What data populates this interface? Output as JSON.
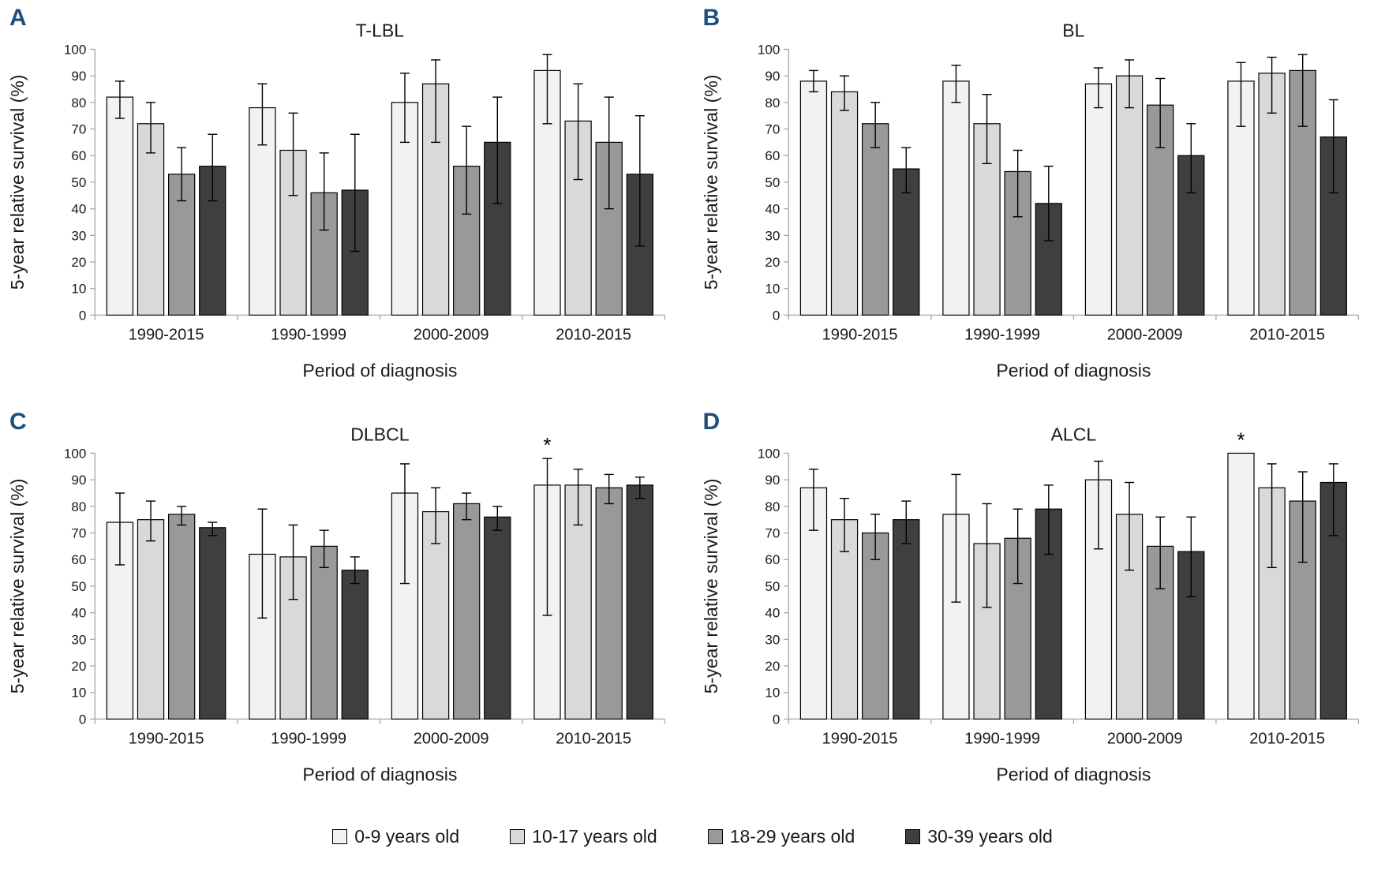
{
  "figure": {
    "accent_color": "#1d4f7e",
    "bar_border_color": "#000000",
    "axis_color": "#a6a6a6",
    "legend": {
      "items": [
        {
          "label": "0-9 years old",
          "color": "#f2f2f2"
        },
        {
          "label": "10-17 years old",
          "color": "#d9d9d9"
        },
        {
          "label": "18-29  years old",
          "color": "#999999"
        },
        {
          "label": "30-39 years old",
          "color": "#3f3f3f"
        }
      ]
    }
  },
  "chart_data": [
    {
      "panel": "A",
      "title": "T-LBL",
      "type": "bar",
      "xlabel": "Period of diagnosis",
      "ylabel": "5-year relative survival (%)",
      "ylim": [
        0,
        100
      ],
      "ytick_step": 10,
      "grid": false,
      "legend_position": "bottom",
      "categories": [
        "1990-2015",
        "1990-1999",
        "2000-2009",
        "2010-2015"
      ],
      "series": [
        {
          "name": "0-9 years old",
          "values": [
            82,
            78,
            80,
            92
          ],
          "ci_low": [
            74,
            64,
            65,
            72
          ],
          "ci_high": [
            88,
            87,
            91,
            98
          ]
        },
        {
          "name": "10-17 years old",
          "values": [
            72,
            62,
            87,
            73
          ],
          "ci_low": [
            61,
            45,
            65,
            51
          ],
          "ci_high": [
            80,
            76,
            96,
            87
          ]
        },
        {
          "name": "18-29 years old",
          "values": [
            53,
            46,
            56,
            65
          ],
          "ci_low": [
            43,
            32,
            38,
            40
          ],
          "ci_high": [
            63,
            61,
            71,
            82
          ]
        },
        {
          "name": "30-39 years old",
          "values": [
            56,
            47,
            65,
            53
          ],
          "ci_low": [
            43,
            24,
            42,
            26
          ],
          "ci_high": [
            68,
            68,
            82,
            75
          ]
        }
      ],
      "annotations": []
    },
    {
      "panel": "B",
      "title": "BL",
      "type": "bar",
      "xlabel": "Period of diagnosis",
      "ylabel": "5-year relative survival (%)",
      "ylim": [
        0,
        100
      ],
      "ytick_step": 10,
      "grid": false,
      "legend_position": "bottom",
      "categories": [
        "1990-2015",
        "1990-1999",
        "2000-2009",
        "2010-2015"
      ],
      "series": [
        {
          "name": "0-9 years old",
          "values": [
            88,
            88,
            87,
            88
          ],
          "ci_low": [
            84,
            80,
            78,
            71
          ],
          "ci_high": [
            92,
            94,
            93,
            95
          ]
        },
        {
          "name": "10-17 years old",
          "values": [
            84,
            72,
            90,
            91
          ],
          "ci_low": [
            77,
            57,
            78,
            76
          ],
          "ci_high": [
            90,
            83,
            96,
            97
          ]
        },
        {
          "name": "18-29 years old",
          "values": [
            72,
            54,
            79,
            92
          ],
          "ci_low": [
            63,
            37,
            63,
            71
          ],
          "ci_high": [
            80,
            62,
            89,
            98
          ]
        },
        {
          "name": "30-39 years old",
          "values": [
            55,
            42,
            60,
            67
          ],
          "ci_low": [
            46,
            28,
            46,
            46
          ],
          "ci_high": [
            63,
            56,
            72,
            81
          ]
        }
      ],
      "annotations": []
    },
    {
      "panel": "C",
      "title": "DLBCL",
      "type": "bar",
      "xlabel": "Period of diagnosis",
      "ylabel": "5-year relative survival (%)",
      "ylim": [
        0,
        100
      ],
      "ytick_step": 10,
      "grid": false,
      "legend_position": "bottom",
      "categories": [
        "1990-2015",
        "1990-1999",
        "2000-2009",
        "2010-2015"
      ],
      "series": [
        {
          "name": "0-9 years old",
          "values": [
            74,
            62,
            85,
            88
          ],
          "ci_low": [
            58,
            38,
            51,
            39
          ],
          "ci_high": [
            85,
            79,
            96,
            98
          ]
        },
        {
          "name": "10-17 years old",
          "values": [
            75,
            61,
            78,
            88
          ],
          "ci_low": [
            67,
            45,
            66,
            73
          ],
          "ci_high": [
            82,
            73,
            87,
            94
          ]
        },
        {
          "name": "18-29 years old",
          "values": [
            77,
            65,
            81,
            87
          ],
          "ci_low": [
            73,
            57,
            75,
            81
          ],
          "ci_high": [
            80,
            71,
            85,
            92
          ]
        },
        {
          "name": "30-39 years old",
          "values": [
            72,
            56,
            76,
            88
          ],
          "ci_low": [
            69,
            51,
            71,
            83
          ],
          "ci_high": [
            74,
            61,
            80,
            91
          ]
        }
      ],
      "annotations": [
        {
          "category_index": 3,
          "series_index": 0,
          "text": "*"
        }
      ]
    },
    {
      "panel": "D",
      "title": "ALCL",
      "type": "bar",
      "xlabel": "Period of diagnosis",
      "ylabel": "5-year relative survival (%)",
      "ylim": [
        0,
        100
      ],
      "ytick_step": 10,
      "grid": false,
      "legend_position": "bottom",
      "categories": [
        "1990-2015",
        "1990-1999",
        "2000-2009",
        "2010-2015"
      ],
      "series": [
        {
          "name": "0-9 years old",
          "values": [
            87,
            77,
            90,
            100
          ],
          "ci_low": [
            71,
            44,
            64,
            100
          ],
          "ci_high": [
            94,
            92,
            97,
            100
          ]
        },
        {
          "name": "10-17 years old",
          "values": [
            75,
            66,
            77,
            87
          ],
          "ci_low": [
            63,
            42,
            56,
            57
          ],
          "ci_high": [
            83,
            81,
            89,
            96
          ]
        },
        {
          "name": "18-29 years old",
          "values": [
            70,
            68,
            65,
            82
          ],
          "ci_low": [
            60,
            51,
            49,
            59
          ],
          "ci_high": [
            77,
            79,
            76,
            93
          ]
        },
        {
          "name": "30-39 years old",
          "values": [
            75,
            79,
            63,
            89
          ],
          "ci_low": [
            66,
            62,
            46,
            69
          ],
          "ci_high": [
            82,
            88,
            76,
            96
          ]
        }
      ],
      "annotations": [
        {
          "category_index": 3,
          "series_index": 0,
          "text": "*"
        }
      ]
    }
  ]
}
